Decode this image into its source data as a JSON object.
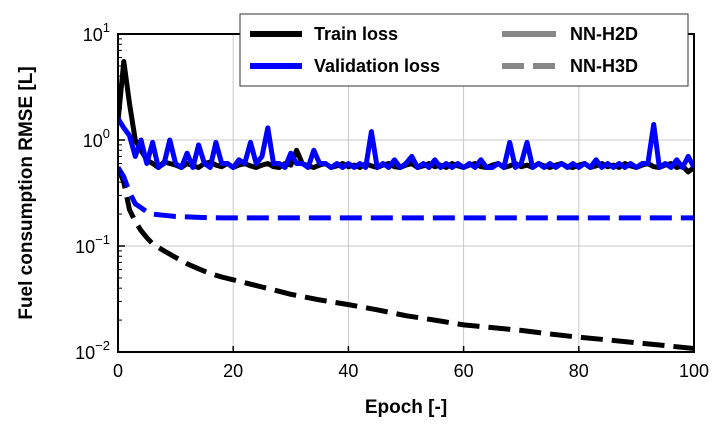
{
  "chart_data": {
    "type": "line",
    "xlabel": "Epoch  [-]",
    "ylabel": "Fuel consumption  RMSE [L]",
    "xlim": [
      0,
      100
    ],
    "ylim": [
      0.01,
      10
    ],
    "yscale": "log",
    "grid": true,
    "legend_placement": "top-right",
    "x_ticks": [
      "0",
      "20",
      "40",
      "60",
      "80",
      "100"
    ],
    "y_ticks": [
      {
        "base": "10",
        "exp": "1"
      },
      {
        "base": "10",
        "exp": "0"
      },
      {
        "base": "10",
        "exp": "−1"
      },
      {
        "base": "10",
        "exp": "−2"
      }
    ],
    "legend": {
      "color_entries": [
        {
          "label": "Train loss",
          "color": "#000000"
        },
        {
          "label": "Validation loss",
          "color": "#0000ff"
        }
      ],
      "style_entries": [
        {
          "label": "NN-H2D",
          "dash": "solid"
        },
        {
          "label": "NN-H3D",
          "dash": "dashed"
        }
      ]
    },
    "series": [
      {
        "name": "Train loss",
        "model": "NN-H2D",
        "color": "#000000",
        "dash": "solid",
        "x": [
          0,
          1,
          2,
          3,
          4,
          5,
          6,
          7,
          8,
          9,
          10,
          11,
          12,
          13,
          14,
          15,
          16,
          17,
          18,
          19,
          20,
          21,
          22,
          23,
          24,
          25,
          26,
          27,
          28,
          29,
          30,
          31,
          32,
          33,
          34,
          35,
          36,
          37,
          38,
          39,
          40,
          41,
          42,
          43,
          44,
          45,
          46,
          47,
          48,
          49,
          50,
          51,
          52,
          53,
          54,
          55,
          56,
          57,
          58,
          59,
          60,
          61,
          62,
          63,
          64,
          65,
          66,
          67,
          68,
          69,
          70,
          71,
          72,
          73,
          74,
          75,
          76,
          77,
          78,
          79,
          80,
          81,
          82,
          83,
          84,
          85,
          86,
          87,
          88,
          89,
          90,
          91,
          92,
          93,
          94,
          95,
          96,
          97,
          98,
          99,
          100
        ],
        "y": [
          1.5,
          5.5,
          2.2,
          1.0,
          0.8,
          0.65,
          0.6,
          0.55,
          0.62,
          0.6,
          0.58,
          0.55,
          0.6,
          0.57,
          0.55,
          0.6,
          0.62,
          0.58,
          0.56,
          0.6,
          0.55,
          0.58,
          0.6,
          0.57,
          0.55,
          0.58,
          0.6,
          0.56,
          0.55,
          0.6,
          0.58,
          0.8,
          0.6,
          0.57,
          0.55,
          0.58,
          0.6,
          0.55,
          0.57,
          0.6,
          0.56,
          0.58,
          0.55,
          0.6,
          0.57,
          0.55,
          0.58,
          0.6,
          0.56,
          0.55,
          0.58,
          0.6,
          0.55,
          0.57,
          0.6,
          0.56,
          0.58,
          0.55,
          0.6,
          0.57,
          0.55,
          0.58,
          0.6,
          0.56,
          0.55,
          0.58,
          0.6,
          0.55,
          0.57,
          0.6,
          0.56,
          0.58,
          0.55,
          0.6,
          0.57,
          0.55,
          0.58,
          0.6,
          0.56,
          0.55,
          0.58,
          0.6,
          0.55,
          0.57,
          0.6,
          0.56,
          0.58,
          0.55,
          0.6,
          0.57,
          0.55,
          0.58,
          0.6,
          0.56,
          0.55,
          0.58,
          0.6,
          0.55,
          0.57,
          0.5,
          0.55
        ]
      },
      {
        "name": "Validation loss",
        "model": "NN-H2D",
        "color": "#0000ff",
        "dash": "solid",
        "x": [
          0,
          1,
          2,
          3,
          4,
          5,
          6,
          7,
          8,
          9,
          10,
          11,
          12,
          13,
          14,
          15,
          16,
          17,
          18,
          19,
          20,
          21,
          22,
          23,
          24,
          25,
          26,
          27,
          28,
          29,
          30,
          31,
          32,
          33,
          34,
          35,
          36,
          37,
          38,
          39,
          40,
          41,
          42,
          43,
          44,
          45,
          46,
          47,
          48,
          49,
          50,
          51,
          52,
          53,
          54,
          55,
          56,
          57,
          58,
          59,
          60,
          61,
          62,
          63,
          64,
          65,
          66,
          67,
          68,
          69,
          70,
          71,
          72,
          73,
          74,
          75,
          76,
          77,
          78,
          79,
          80,
          81,
          82,
          83,
          84,
          85,
          86,
          87,
          88,
          89,
          90,
          91,
          92,
          93,
          94,
          95,
          96,
          97,
          98,
          99,
          100
        ],
        "y": [
          1.6,
          1.3,
          1.1,
          0.7,
          1.0,
          0.6,
          0.95,
          0.55,
          0.6,
          1.0,
          0.6,
          0.55,
          0.75,
          0.55,
          0.9,
          0.6,
          0.55,
          0.95,
          0.6,
          0.6,
          0.55,
          0.65,
          0.6,
          0.95,
          0.6,
          0.7,
          1.3,
          0.6,
          0.6,
          0.55,
          0.75,
          0.6,
          0.6,
          0.55,
          0.8,
          0.6,
          0.6,
          0.55,
          0.6,
          0.55,
          0.6,
          0.55,
          0.6,
          0.55,
          1.2,
          0.55,
          0.6,
          0.55,
          0.65,
          0.55,
          0.6,
          0.7,
          0.55,
          0.6,
          0.55,
          0.65,
          0.55,
          0.6,
          0.55,
          0.6,
          0.55,
          0.6,
          0.55,
          0.65,
          0.55,
          0.55,
          0.6,
          0.55,
          0.95,
          0.55,
          0.6,
          0.95,
          0.55,
          0.6,
          0.55,
          0.6,
          0.55,
          0.6,
          0.55,
          0.6,
          0.55,
          0.6,
          0.55,
          0.65,
          0.55,
          0.6,
          0.55,
          0.6,
          0.55,
          0.6,
          0.55,
          0.6,
          0.6,
          1.4,
          0.55,
          0.6,
          0.55,
          0.65,
          0.55,
          0.7,
          0.55
        ]
      },
      {
        "name": "Train loss",
        "model": "NN-H3D",
        "color": "#000000",
        "dash": "dashed",
        "x": [
          0,
          1,
          2,
          3,
          4,
          5,
          6,
          8,
          10,
          12,
          14,
          16,
          18,
          20,
          25,
          30,
          35,
          40,
          45,
          50,
          55,
          60,
          65,
          70,
          75,
          80,
          85,
          90,
          95,
          100
        ],
        "y": [
          0.55,
          0.4,
          0.22,
          0.17,
          0.14,
          0.12,
          0.105,
          0.09,
          0.078,
          0.068,
          0.061,
          0.055,
          0.051,
          0.048,
          0.041,
          0.035,
          0.031,
          0.028,
          0.025,
          0.022,
          0.02,
          0.018,
          0.017,
          0.016,
          0.0148,
          0.0138,
          0.013,
          0.0122,
          0.0115,
          0.0108
        ]
      },
      {
        "name": "Validation loss",
        "model": "NN-H3D",
        "color": "#0000ff",
        "dash": "dashed",
        "x": [
          0,
          1,
          2,
          3,
          4,
          5,
          6,
          8,
          10,
          12,
          14,
          16,
          18,
          20,
          25,
          30,
          40,
          50,
          60,
          70,
          80,
          90,
          100
        ],
        "y": [
          0.55,
          0.45,
          0.32,
          0.25,
          0.23,
          0.21,
          0.2,
          0.195,
          0.19,
          0.188,
          0.186,
          0.185,
          0.184,
          0.184,
          0.184,
          0.184,
          0.184,
          0.184,
          0.184,
          0.184,
          0.184,
          0.184,
          0.184
        ]
      }
    ]
  }
}
